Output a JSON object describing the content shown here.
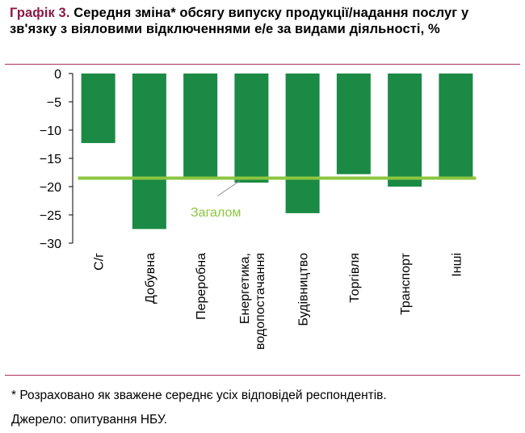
{
  "header": {
    "label": "Графік 3.",
    "text": "Середня зміна* обсягу випуску продукції/надання послуг у зв'язку з віяловими відключеннями е/е за видами діяльності, %"
  },
  "chart_data": {
    "type": "bar",
    "categories": [
      "С/г",
      "Добувна",
      "Переробна",
      [
        "Енергетика,",
        "водопостачання"
      ],
      "Будівництво",
      "Торгівля",
      "Транспорт",
      "Інші"
    ],
    "values": [
      -12.3,
      -27.5,
      -18.3,
      -19.3,
      -24.7,
      -17.8,
      -20.0,
      -18.3
    ],
    "ylim": [
      -30,
      0
    ],
    "yticks": [
      0,
      -5,
      -10,
      -15,
      -20,
      -25,
      -30
    ],
    "overall": {
      "label": "Загалом",
      "value": -18.5
    },
    "colors": {
      "bar": "#1a8a45",
      "overall_line": "#8cc63f",
      "overall_label": "#8cc63f"
    }
  },
  "notes": {
    "footnote": "* Розраховано як зважене середнє усіх відповідей респондентів.",
    "source": "Джерело: опитування НБУ."
  }
}
